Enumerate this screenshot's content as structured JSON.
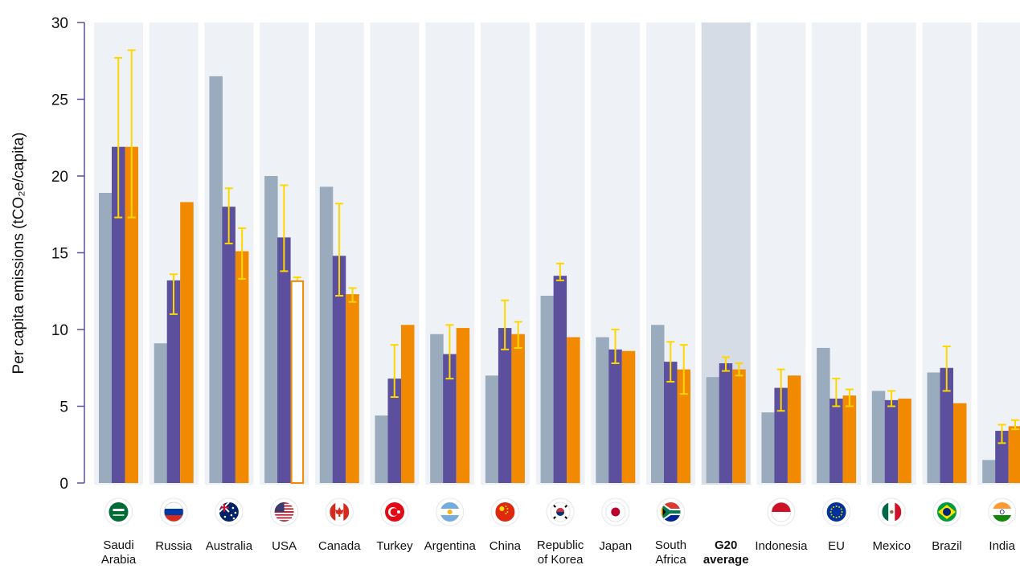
{
  "chart_data": {
    "type": "bar",
    "title": "",
    "xlabel": "",
    "ylabel": "Per capita emissions (tCO₂e/capita)",
    "ylim": [
      0,
      30
    ],
    "yticks": [
      "0",
      "5",
      "10",
      "15",
      "20",
      "25",
      "30"
    ],
    "highlight_category": "G20 average",
    "colors": {
      "series1": "#9aabbd",
      "series2": "#5b4f9e",
      "series3": "#f18a00",
      "error_bar": "#ffd700",
      "band": "#eef2f6",
      "band_highlight": "#d5dce5",
      "axis": "#5b4f9e"
    },
    "categories": [
      {
        "label": [
          "Saudi",
          "Arabia"
        ],
        "flag": "saudi-arabia-flag-icon"
      },
      {
        "label": [
          "Russia"
        ],
        "flag": "russia-flag-icon"
      },
      {
        "label": [
          "Australia"
        ],
        "flag": "australia-flag-icon"
      },
      {
        "label": [
          "USA"
        ],
        "flag": "usa-flag-icon"
      },
      {
        "label": [
          "Canada"
        ],
        "flag": "canada-flag-icon"
      },
      {
        "label": [
          "Turkey"
        ],
        "flag": "turkey-flag-icon"
      },
      {
        "label": [
          "Argentina"
        ],
        "flag": "argentina-flag-icon"
      },
      {
        "label": [
          "China"
        ],
        "flag": "china-flag-icon"
      },
      {
        "label": [
          "Republic",
          "of Korea"
        ],
        "flag": "korea-flag-icon"
      },
      {
        "label": [
          "Japan"
        ],
        "flag": "japan-flag-icon"
      },
      {
        "label": [
          "South",
          "Africa"
        ],
        "flag": "south-africa-flag-icon"
      },
      {
        "label": [
          "G20",
          "average"
        ],
        "flag": "",
        "bold": true
      },
      {
        "label": [
          "Indonesia"
        ],
        "flag": "indonesia-flag-icon"
      },
      {
        "label": [
          "EU"
        ],
        "flag": "eu-flag-icon"
      },
      {
        "label": [
          "Mexico"
        ],
        "flag": "mexico-flag-icon"
      },
      {
        "label": [
          "Brazil"
        ],
        "flag": "brazil-flag-icon"
      },
      {
        "label": [
          "India"
        ],
        "flag": "india-flag-icon"
      }
    ],
    "series": [
      {
        "values": [
          18.9,
          9.1,
          26.5,
          20.0,
          19.3,
          4.4,
          9.7,
          7.0,
          12.2,
          9.5,
          10.3,
          6.9,
          4.6,
          8.8,
          6.0,
          7.2,
          1.5
        ]
      },
      {
        "values": [
          21.9,
          13.2,
          18.0,
          16.0,
          14.8,
          6.8,
          8.4,
          10.1,
          13.5,
          8.7,
          7.9,
          7.8,
          6.2,
          5.5,
          5.4,
          7.5,
          3.4
        ],
        "error_low": [
          17.3,
          11.0,
          15.6,
          13.8,
          12.2,
          5.6,
          6.8,
          8.7,
          13.2,
          7.8,
          6.6,
          7.3,
          4.7,
          5.0,
          5.0,
          6.0,
          2.6
        ],
        "error_high": [
          27.7,
          13.6,
          19.2,
          19.4,
          18.2,
          9.0,
          10.3,
          11.9,
          14.3,
          10.0,
          9.2,
          8.2,
          7.4,
          6.8,
          6.0,
          8.9,
          3.8
        ]
      },
      {
        "values": [
          21.9,
          18.3,
          15.1,
          13.2,
          12.3,
          10.3,
          10.1,
          9.7,
          9.5,
          8.6,
          7.4,
          7.4,
          7.0,
          5.7,
          5.5,
          5.2,
          3.7
        ],
        "hollow": [
          false,
          false,
          false,
          true,
          false,
          false,
          false,
          false,
          false,
          false,
          false,
          false,
          false,
          false,
          false,
          false,
          false
        ],
        "error_low": [
          17.3,
          null,
          13.3,
          null,
          11.8,
          null,
          null,
          8.8,
          null,
          null,
          5.8,
          7.0,
          null,
          5.0,
          null,
          null,
          3.5
        ],
        "error_high": [
          28.2,
          null,
          16.6,
          13.4,
          12.7,
          null,
          null,
          10.5,
          null,
          null,
          9.0,
          7.8,
          null,
          6.1,
          null,
          null,
          4.1
        ]
      }
    ]
  }
}
